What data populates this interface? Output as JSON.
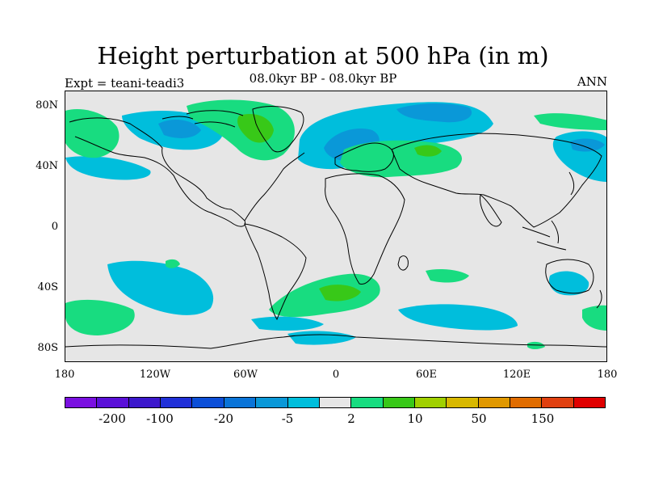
{
  "title": "Height perturbation at 500 hPa (in m)",
  "subtitle": "08.0kyr BP - 08.0kyr BP",
  "left_label": "Expt = teani-teadi3",
  "right_label": "ANN",
  "map": {
    "projection": "cylindrical-equidistant",
    "lon_range": [
      -180,
      180
    ],
    "lat_range": [
      -90,
      90
    ],
    "background_color": "#e6e6e6",
    "coastline_color": "#000000",
    "lat_ticks": [
      "80N",
      "40N",
      "0",
      "40S",
      "80S"
    ],
    "lon_ticks": [
      "180",
      "120W",
      "60W",
      "0",
      "60E",
      "120E",
      "180"
    ],
    "shading_note": "Positive anomalies green over Greenland, Russia, South Atlantic; negative cyan/blue over North Atlantic/Arctic, North Pacific, Southern Ocean."
  },
  "colorbar": {
    "colors": [
      "#7a10e0",
      "#5a10d8",
      "#3c18cc",
      "#2030d8",
      "#0c4fd8",
      "#0a74d8",
      "#0a98d8",
      "#00bedc",
      "#e6e6e6",
      "#18dc80",
      "#38c818",
      "#a0d000",
      "#d8b800",
      "#e09800",
      "#e06c00",
      "#e04010",
      "#e00000"
    ],
    "labels": [
      "-200",
      "-100",
      "-20",
      "-5",
      "2",
      "10",
      "50",
      "150"
    ]
  }
}
